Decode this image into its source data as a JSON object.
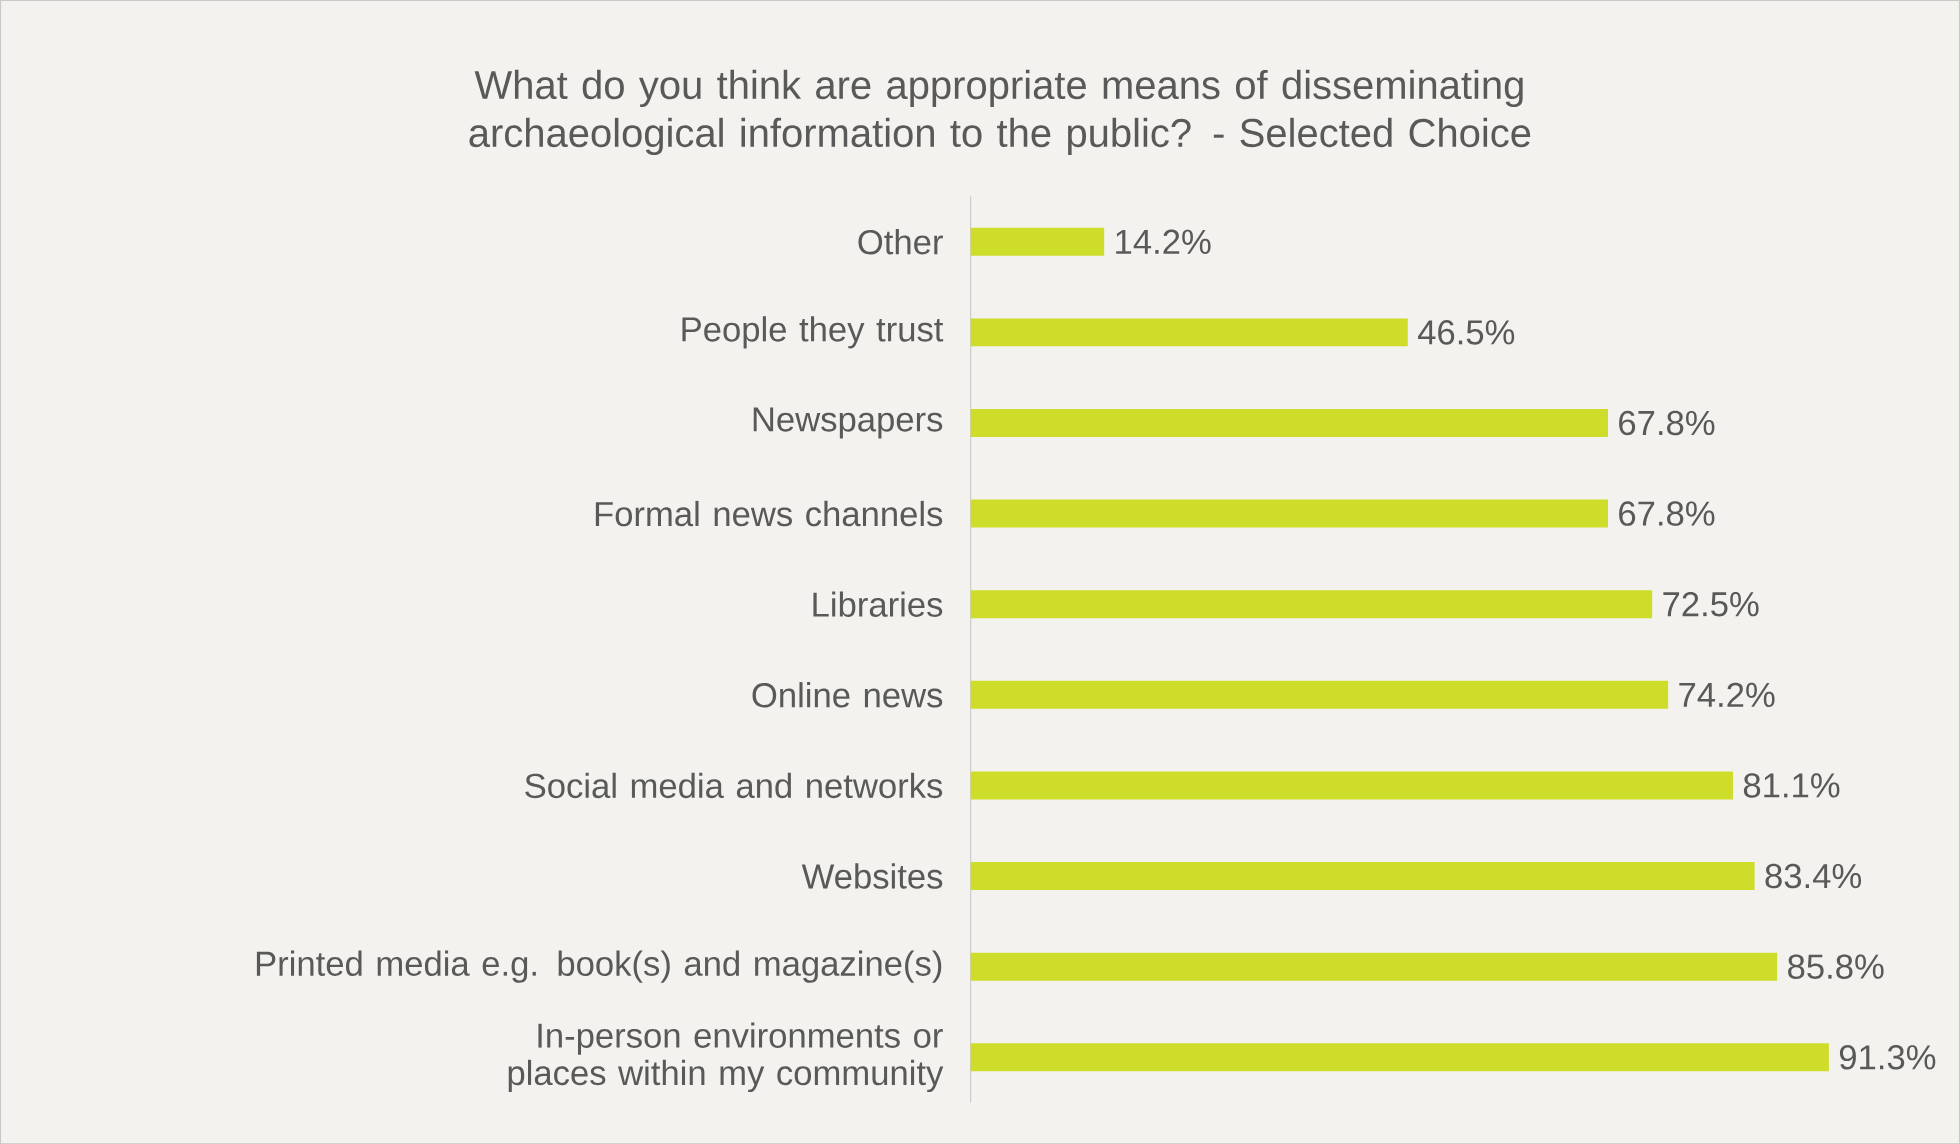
{
  "chart_data": {
    "type": "bar",
    "orientation": "horizontal",
    "title": "What do you think are appropriate means of disseminating archaeological information to the public? - Selected Choice",
    "categories": [
      "Other",
      "People they trust",
      "Newspapers",
      "Formal news channels",
      "Libraries",
      "Online news",
      "Social media and networks",
      "Websites",
      "Printed media e.g. book(s) and magazine(s)",
      "In-person environments or places within my community"
    ],
    "values": [
      14.2,
      46.5,
      67.8,
      67.8,
      72.5,
      74.2,
      81.1,
      83.4,
      85.8,
      91.3
    ],
    "value_labels": [
      "14.2%",
      "46.5%",
      "67.8%",
      "67.8%",
      "72.5%",
      "74.2%",
      "81.1%",
      "83.4%",
      "85.8%",
      "91.3%"
    ],
    "color": "#cedc2a"
  }
}
